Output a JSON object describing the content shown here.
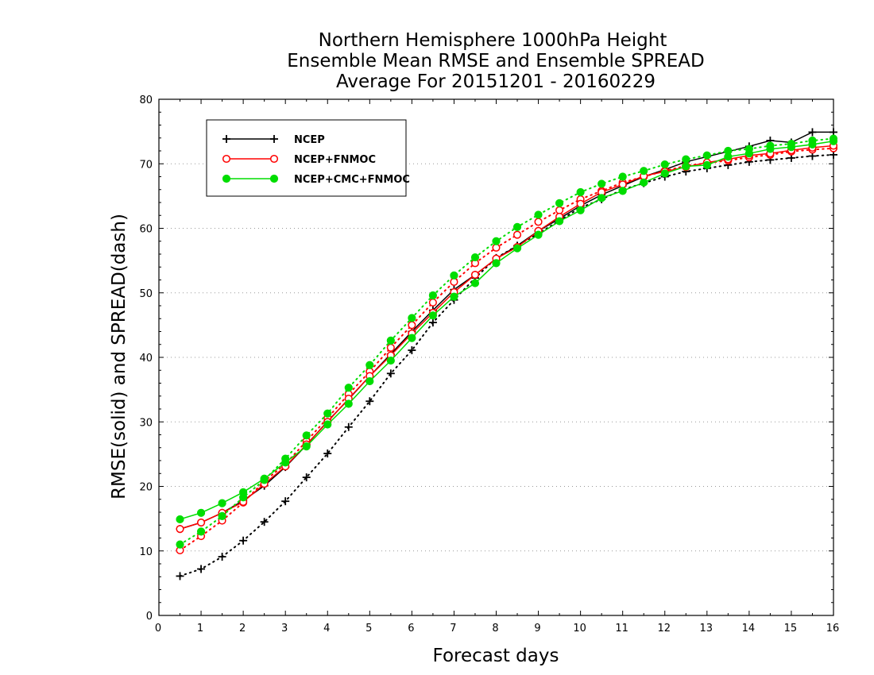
{
  "chart_data": {
    "type": "line",
    "title_lines": [
      "Northern Hemisphere 1000hPa Height",
      "Ensemble Mean RMSE and Ensemble SPREAD",
      "Average For 20151201 - 20160229"
    ],
    "xlabel": "Forecast days",
    "ylabel": "RMSE(solid) and SPREAD(dash)",
    "xlim": [
      0,
      16
    ],
    "ylim": [
      0,
      80
    ],
    "x_ticks": [
      "0",
      "1",
      "2",
      "3",
      "4",
      "5",
      "6",
      "7",
      "8",
      "9",
      "10",
      "11",
      "12",
      "13",
      "14",
      "15",
      "16"
    ],
    "y_ticks": [
      "0",
      "10",
      "20",
      "30",
      "40",
      "50",
      "60",
      "70",
      "80"
    ],
    "grid": "horizontal dotted",
    "legend_position": "top-left",
    "x": [
      0.5,
      1,
      1.5,
      2,
      2.5,
      3,
      3.5,
      4,
      4.5,
      5,
      5.5,
      6,
      6.5,
      7,
      7.5,
      8,
      8.5,
      9,
      9.5,
      10,
      10.5,
      11,
      11.5,
      12,
      12.5,
      13,
      13.5,
      14,
      14.5,
      15,
      15.5,
      16
    ],
    "series": [
      {
        "name": "NCEP",
        "color": "#000000",
        "marker": "plus",
        "rmse": [
          13.4,
          14.4,
          15.9,
          17.8,
          20.1,
          23.0,
          26.4,
          30.1,
          33.5,
          37.1,
          40.5,
          44.0,
          47.3,
          50.5,
          52.8,
          55.3,
          57.3,
          59.6,
          61.5,
          63.5,
          65.2,
          66.6,
          68.0,
          69.1,
          70.3,
          71.1,
          71.9,
          72.7,
          73.6,
          73.3,
          74.9,
          74.9
        ],
        "spread": [
          6.1,
          7.2,
          9.1,
          11.6,
          14.5,
          17.7,
          21.4,
          25.1,
          29.2,
          33.2,
          37.5,
          41.1,
          45.4,
          48.9,
          52.3,
          55.4,
          57.3,
          59.2,
          61.2,
          63.2,
          64.5,
          66.0,
          67.0,
          68.0,
          68.8,
          69.3,
          69.8,
          70.3,
          70.6,
          70.9,
          71.2,
          71.4
        ]
      },
      {
        "name": "NCEP+FNMOC",
        "color": "#ff0000",
        "marker": "open-circle",
        "rmse": [
          13.4,
          14.4,
          15.9,
          17.6,
          20.4,
          23.1,
          26.5,
          30.0,
          33.6,
          37.1,
          40.3,
          43.7,
          46.9,
          50.1,
          52.8,
          55.3,
          57.1,
          59.6,
          61.8,
          63.8,
          65.6,
          66.8,
          68.1,
          68.8,
          69.5,
          70.2,
          70.7,
          71.3,
          71.6,
          72.1,
          72.5,
          72.8
        ],
        "spread": [
          10.1,
          12.3,
          14.7,
          17.5,
          20.8,
          23.5,
          27.0,
          30.6,
          34.3,
          37.8,
          41.5,
          45.0,
          48.5,
          51.7,
          54.6,
          57.0,
          59.0,
          61.0,
          62.8,
          64.5,
          65.8,
          67.1,
          68.0,
          68.9,
          69.7,
          70.1,
          70.5,
          71.0,
          71.4,
          71.9,
          72.2,
          72.4
        ]
      },
      {
        "name": "NCEP+CMC+FNMOC",
        "color": "#00dd00",
        "marker": "filled-circle",
        "rmse": [
          14.9,
          15.9,
          17.4,
          19.1,
          21.2,
          23.7,
          26.2,
          29.6,
          32.8,
          36.3,
          39.5,
          43.0,
          46.5,
          49.4,
          51.5,
          54.6,
          56.9,
          59.0,
          61.1,
          62.8,
          64.7,
          65.8,
          67.1,
          68.5,
          69.6,
          69.8,
          71.1,
          71.6,
          72.3,
          72.6,
          73.0,
          73.5
        ],
        "spread": [
          11.0,
          13.0,
          15.4,
          18.3,
          21.0,
          24.3,
          27.9,
          31.3,
          35.3,
          38.8,
          42.6,
          46.1,
          49.6,
          52.7,
          55.5,
          58.0,
          60.2,
          62.1,
          63.9,
          65.6,
          66.9,
          68.0,
          68.9,
          69.9,
          70.7,
          71.3,
          72.0,
          72.3,
          72.8,
          73.1,
          73.6,
          73.9
        ]
      }
    ]
  }
}
